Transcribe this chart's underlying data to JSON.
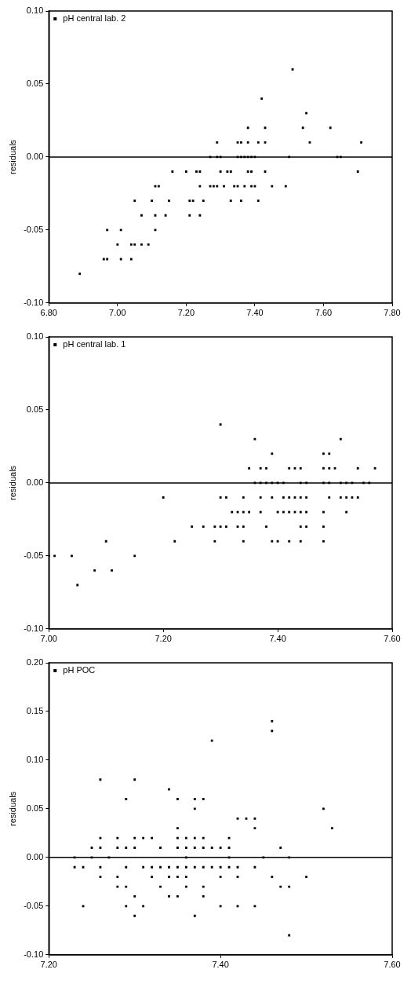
{
  "chart_data": [
    {
      "type": "scatter",
      "ylabel": "residuals",
      "legend": "top left",
      "marker": "square",
      "grid": false,
      "xlim": [
        6.8,
        7.8
      ],
      "xticks": [
        {
          "value": 6.8,
          "label": "6.80"
        },
        {
          "value": 7.0,
          "label": "7.00"
        },
        {
          "value": 7.2,
          "label": "7.20"
        },
        {
          "value": 7.4,
          "label": "7.40"
        },
        {
          "value": 7.6,
          "label": "7.60"
        },
        {
          "value": 7.8,
          "label": "7.80"
        }
      ],
      "ylim": [
        -0.1,
        0.1
      ],
      "yticks": [
        {
          "value": -0.1,
          "label": "-0.10"
        },
        {
          "value": -0.05,
          "label": "-0.05"
        },
        {
          "value": 0,
          "label": "0.00"
        },
        {
          "value": 0.05,
          "label": "0.05"
        },
        {
          "value": 0.1,
          "label": "0.10"
        }
      ],
      "ref_lines": [
        {
          "axis": "y",
          "value": 0
        }
      ],
      "series": [
        {
          "name": "pH central lab. 2",
          "color": "#000000",
          "x": [
            6.89,
            6.96,
            6.97,
            7.01,
            7.04,
            7.0,
            7.04,
            7.05,
            7.07,
            7.09,
            6.97,
            7.01,
            7.11,
            7.07,
            7.11,
            7.14,
            7.21,
            7.24,
            7.05,
            7.1,
            7.15,
            7.21,
            7.22,
            7.25,
            7.33,
            7.36,
            7.41,
            7.11,
            7.12,
            7.24,
            7.27,
            7.28,
            7.29,
            7.31,
            7.34,
            7.35,
            7.37,
            7.39,
            7.4,
            7.45,
            7.49,
            7.16,
            7.2,
            7.23,
            7.24,
            7.3,
            7.32,
            7.33,
            7.38,
            7.39,
            7.43,
            7.7,
            7.27,
            7.29,
            7.3,
            7.35,
            7.36,
            7.37,
            7.38,
            7.39,
            7.4,
            7.5,
            7.64,
            7.65,
            7.29,
            7.35,
            7.36,
            7.38,
            7.41,
            7.43,
            7.56,
            7.71,
            7.38,
            7.43,
            7.54,
            7.62,
            7.55,
            7.42,
            7.51
          ],
          "values": [
            -0.08,
            -0.07,
            -0.07,
            -0.07,
            -0.07,
            -0.06,
            -0.06,
            -0.06,
            -0.06,
            -0.06,
            -0.05,
            -0.05,
            -0.05,
            -0.04,
            -0.04,
            -0.04,
            -0.04,
            -0.04,
            -0.03,
            -0.03,
            -0.03,
            -0.03,
            -0.03,
            -0.03,
            -0.03,
            -0.03,
            -0.03,
            -0.02,
            -0.02,
            -0.02,
            -0.02,
            -0.02,
            -0.02,
            -0.02,
            -0.02,
            -0.02,
            -0.02,
            -0.02,
            -0.02,
            -0.02,
            -0.02,
            -0.01,
            -0.01,
            -0.01,
            -0.01,
            -0.01,
            -0.01,
            -0.01,
            -0.01,
            -0.01,
            -0.01,
            -0.01,
            0,
            0,
            0,
            0,
            0,
            0,
            0,
            0,
            0,
            0,
            0,
            0,
            0.01,
            0.01,
            0.01,
            0.01,
            0.01,
            0.01,
            0.01,
            0.01,
            0.02,
            0.02,
            0.02,
            0.02,
            0.03,
            0.04,
            0.06
          ]
        }
      ]
    },
    {
      "type": "scatter",
      "ylabel": "residuals",
      "legend": "top left",
      "marker": "square",
      "grid": false,
      "xlim": [
        7.0,
        7.6
      ],
      "xticks": [
        {
          "value": 7.0,
          "label": "7.00"
        },
        {
          "value": 7.2,
          "label": "7.20"
        },
        {
          "value": 7.4,
          "label": "7.40"
        },
        {
          "value": 7.6,
          "label": "7.60"
        }
      ],
      "ylim": [
        -0.1,
        0.1
      ],
      "yticks": [
        {
          "value": -0.1,
          "label": "-0.10"
        },
        {
          "value": -0.05,
          "label": "-0.05"
        },
        {
          "value": 0,
          "label": "0.00"
        },
        {
          "value": 0.05,
          "label": "0.05"
        },
        {
          "value": 0.1,
          "label": "0.10"
        }
      ],
      "ref_lines": [
        {
          "axis": "y",
          "value": 0
        }
      ],
      "series": [
        {
          "name": "pH central lab. 1",
          "color": "#000000",
          "x": [
            7.05,
            7.08,
            7.11,
            7.0,
            7.01,
            7.04,
            7.15,
            7.1,
            7.22,
            7.29,
            7.34,
            7.39,
            7.4,
            7.42,
            7.44,
            7.48,
            7.25,
            7.27,
            7.29,
            7.3,
            7.31,
            7.33,
            7.34,
            7.38,
            7.44,
            7.45,
            7.48,
            7.32,
            7.33,
            7.34,
            7.35,
            7.37,
            7.4,
            7.41,
            7.42,
            7.43,
            7.44,
            7.45,
            7.48,
            7.52,
            7.2,
            7.3,
            7.31,
            7.34,
            7.37,
            7.39,
            7.41,
            7.42,
            7.43,
            7.44,
            7.45,
            7.49,
            7.51,
            7.52,
            7.53,
            7.54,
            7.36,
            7.37,
            7.38,
            7.39,
            7.4,
            7.41,
            7.44,
            7.45,
            7.48,
            7.49,
            7.51,
            7.52,
            7.53,
            7.55,
            7.56,
            7.35,
            7.37,
            7.38,
            7.42,
            7.43,
            7.44,
            7.48,
            7.49,
            7.5,
            7.54,
            7.57,
            7.39,
            7.48,
            7.49,
            7.36,
            7.51,
            7.3
          ],
          "values": [
            -0.07,
            -0.06,
            -0.06,
            -0.05,
            -0.05,
            -0.05,
            -0.05,
            -0.04,
            -0.04,
            -0.04,
            -0.04,
            -0.04,
            -0.04,
            -0.04,
            -0.04,
            -0.04,
            -0.03,
            -0.03,
            -0.03,
            -0.03,
            -0.03,
            -0.03,
            -0.03,
            -0.03,
            -0.03,
            -0.03,
            -0.03,
            -0.02,
            -0.02,
            -0.02,
            -0.02,
            -0.02,
            -0.02,
            -0.02,
            -0.02,
            -0.02,
            -0.02,
            -0.02,
            -0.02,
            -0.02,
            -0.01,
            -0.01,
            -0.01,
            -0.01,
            -0.01,
            -0.01,
            -0.01,
            -0.01,
            -0.01,
            -0.01,
            -0.01,
            -0.01,
            -0.01,
            -0.01,
            -0.01,
            -0.01,
            0,
            0,
            0,
            0,
            0,
            0,
            0,
            0,
            0,
            0,
            0,
            0,
            0,
            0,
            0,
            0.01,
            0.01,
            0.01,
            0.01,
            0.01,
            0.01,
            0.01,
            0.01,
            0.01,
            0.01,
            0.01,
            0.02,
            0.02,
            0.02,
            0.03,
            0.03,
            0.04
          ]
        }
      ]
    },
    {
      "type": "scatter",
      "ylabel": "residuals",
      "legend": "top left",
      "marker": "square",
      "grid": false,
      "xlim": [
        7.2,
        7.6
      ],
      "xticks": [
        {
          "value": 7.2,
          "label": "7.20"
        },
        {
          "value": 7.4,
          "label": "7.40"
        },
        {
          "value": 7.6,
          "label": "7.60"
        }
      ],
      "ylim": [
        -0.1,
        0.2
      ],
      "yticks": [
        {
          "value": -0.1,
          "label": "-0.10"
        },
        {
          "value": -0.05,
          "label": "-0.05"
        },
        {
          "value": 0,
          "label": "0.00"
        },
        {
          "value": 0.05,
          "label": "0.05"
        },
        {
          "value": 0.1,
          "label": "0.10"
        },
        {
          "value": 0.15,
          "label": "0.15"
        },
        {
          "value": 0.2,
          "label": "0.20"
        }
      ],
      "ref_lines": [
        {
          "axis": "y",
          "value": 0
        }
      ],
      "series": [
        {
          "name": "pH POC",
          "color": "#000000",
          "x": [
            7.48,
            7.3,
            7.37,
            7.24,
            7.29,
            7.31,
            7.4,
            7.42,
            7.44,
            7.3,
            7.34,
            7.35,
            7.38,
            7.28,
            7.29,
            7.33,
            7.36,
            7.38,
            7.47,
            7.48,
            7.26,
            7.28,
            7.32,
            7.34,
            7.35,
            7.36,
            7.4,
            7.42,
            7.46,
            7.5,
            7.23,
            7.24,
            7.26,
            7.29,
            7.31,
            7.32,
            7.33,
            7.34,
            7.35,
            7.36,
            7.37,
            7.38,
            7.39,
            7.4,
            7.41,
            7.42,
            7.44,
            7.23,
            7.25,
            7.27,
            7.36,
            7.41,
            7.45,
            7.48,
            7.25,
            7.26,
            7.28,
            7.29,
            7.3,
            7.33,
            7.35,
            7.36,
            7.37,
            7.38,
            7.39,
            7.4,
            7.41,
            7.47,
            7.26,
            7.28,
            7.3,
            7.31,
            7.32,
            7.35,
            7.36,
            7.37,
            7.38,
            7.41,
            7.35,
            7.44,
            7.53,
            7.42,
            7.43,
            7.44,
            7.37,
            7.52,
            7.29,
            7.35,
            7.37,
            7.38,
            7.34,
            7.26,
            7.3,
            7.39,
            7.46,
            7.46
          ],
          "values": [
            -0.08,
            -0.06,
            -0.06,
            -0.05,
            -0.05,
            -0.05,
            -0.05,
            -0.05,
            -0.05,
            -0.04,
            -0.04,
            -0.04,
            -0.04,
            -0.03,
            -0.03,
            -0.03,
            -0.03,
            -0.03,
            -0.03,
            -0.03,
            -0.02,
            -0.02,
            -0.02,
            -0.02,
            -0.02,
            -0.02,
            -0.02,
            -0.02,
            -0.02,
            -0.02,
            -0.01,
            -0.01,
            -0.01,
            -0.01,
            -0.01,
            -0.01,
            -0.01,
            -0.01,
            -0.01,
            -0.01,
            -0.01,
            -0.01,
            -0.01,
            -0.01,
            -0.01,
            -0.01,
            -0.01,
            0,
            0,
            0,
            0,
            0,
            0,
            0,
            0.01,
            0.01,
            0.01,
            0.01,
            0.01,
            0.01,
            0.01,
            0.01,
            0.01,
            0.01,
            0.01,
            0.01,
            0.01,
            0.01,
            0.02,
            0.02,
            0.02,
            0.02,
            0.02,
            0.02,
            0.02,
            0.02,
            0.02,
            0.02,
            0.03,
            0.03,
            0.03,
            0.04,
            0.04,
            0.04,
            0.05,
            0.05,
            0.06,
            0.06,
            0.06,
            0.06,
            0.07,
            0.08,
            0.08,
            0.12,
            0.13,
            0.14
          ]
        }
      ]
    }
  ]
}
